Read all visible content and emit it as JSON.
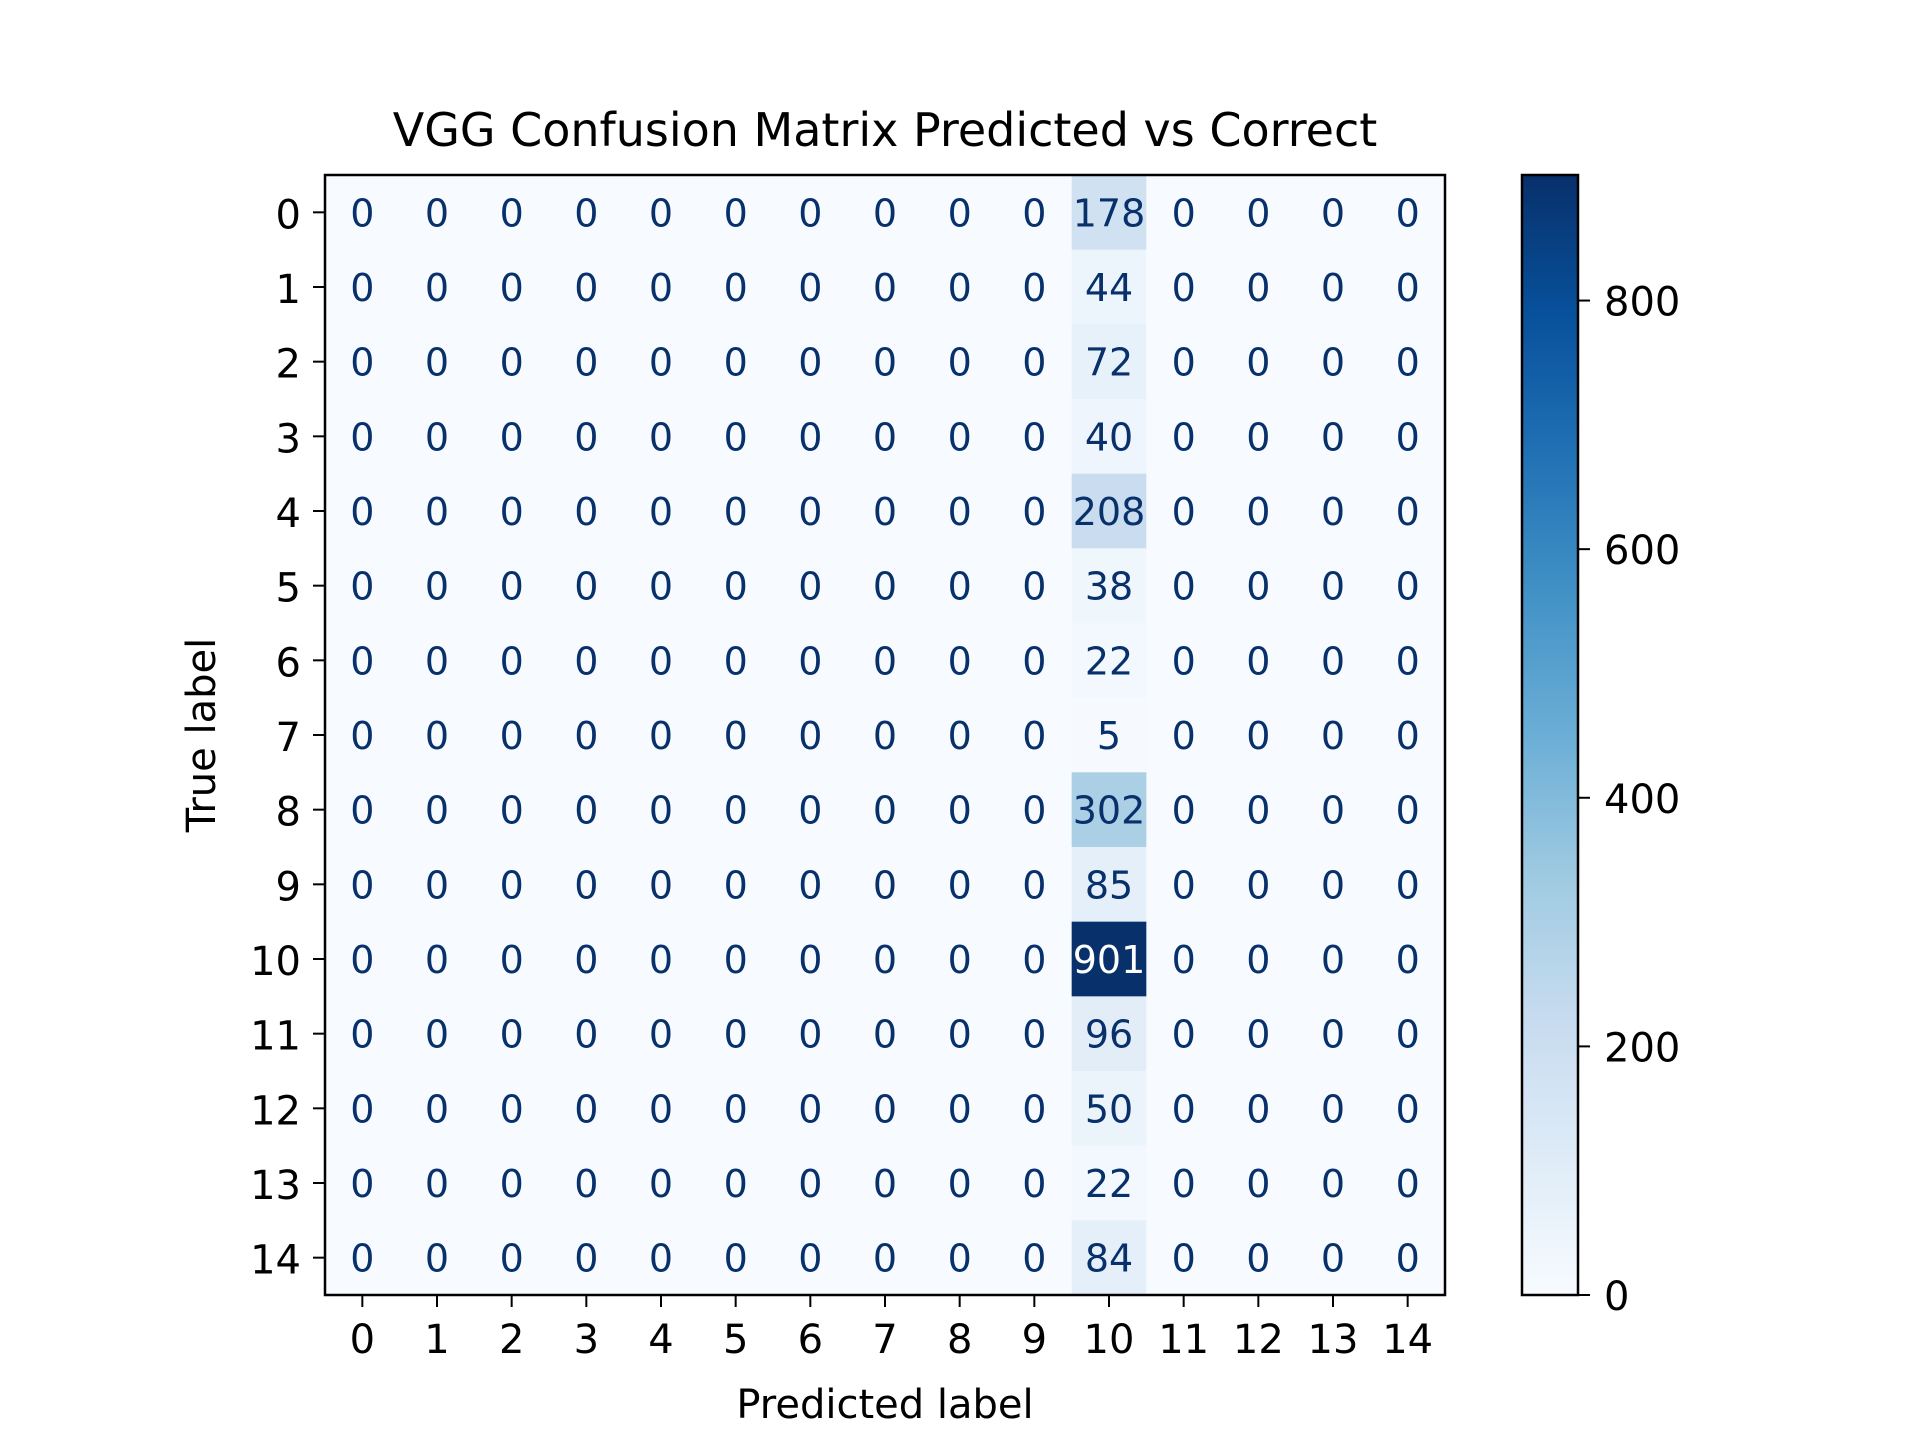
{
  "chart_data": {
    "type": "heatmap",
    "title": "VGG Confusion Matrix Predicted vs Correct",
    "xlabel": "Predicted label",
    "ylabel": "True label",
    "x_tick_labels": [
      "0",
      "1",
      "2",
      "3",
      "4",
      "5",
      "6",
      "7",
      "8",
      "9",
      "10",
      "11",
      "12",
      "13",
      "14"
    ],
    "y_tick_labels": [
      "0",
      "1",
      "2",
      "3",
      "4",
      "5",
      "6",
      "7",
      "8",
      "9",
      "10",
      "11",
      "12",
      "13",
      "14"
    ],
    "values": [
      [
        0,
        0,
        0,
        0,
        0,
        0,
        0,
        0,
        0,
        0,
        178,
        0,
        0,
        0,
        0
      ],
      [
        0,
        0,
        0,
        0,
        0,
        0,
        0,
        0,
        0,
        0,
        44,
        0,
        0,
        0,
        0
      ],
      [
        0,
        0,
        0,
        0,
        0,
        0,
        0,
        0,
        0,
        0,
        72,
        0,
        0,
        0,
        0
      ],
      [
        0,
        0,
        0,
        0,
        0,
        0,
        0,
        0,
        0,
        0,
        40,
        0,
        0,
        0,
        0
      ],
      [
        0,
        0,
        0,
        0,
        0,
        0,
        0,
        0,
        0,
        0,
        208,
        0,
        0,
        0,
        0
      ],
      [
        0,
        0,
        0,
        0,
        0,
        0,
        0,
        0,
        0,
        0,
        38,
        0,
        0,
        0,
        0
      ],
      [
        0,
        0,
        0,
        0,
        0,
        0,
        0,
        0,
        0,
        0,
        22,
        0,
        0,
        0,
        0
      ],
      [
        0,
        0,
        0,
        0,
        0,
        0,
        0,
        0,
        0,
        0,
        5,
        0,
        0,
        0,
        0
      ],
      [
        0,
        0,
        0,
        0,
        0,
        0,
        0,
        0,
        0,
        0,
        302,
        0,
        0,
        0,
        0
      ],
      [
        0,
        0,
        0,
        0,
        0,
        0,
        0,
        0,
        0,
        0,
        85,
        0,
        0,
        0,
        0
      ],
      [
        0,
        0,
        0,
        0,
        0,
        0,
        0,
        0,
        0,
        0,
        901,
        0,
        0,
        0,
        0
      ],
      [
        0,
        0,
        0,
        0,
        0,
        0,
        0,
        0,
        0,
        0,
        96,
        0,
        0,
        0,
        0
      ],
      [
        0,
        0,
        0,
        0,
        0,
        0,
        0,
        0,
        0,
        0,
        50,
        0,
        0,
        0,
        0
      ],
      [
        0,
        0,
        0,
        0,
        0,
        0,
        0,
        0,
        0,
        0,
        22,
        0,
        0,
        0,
        0
      ],
      [
        0,
        0,
        0,
        0,
        0,
        0,
        0,
        0,
        0,
        0,
        84,
        0,
        0,
        0,
        0
      ]
    ],
    "colorbar": {
      "colormap": "Blues",
      "min": 0,
      "max": 901,
      "ticks": [
        0,
        200,
        400,
        600,
        800
      ]
    },
    "grid": false
  }
}
